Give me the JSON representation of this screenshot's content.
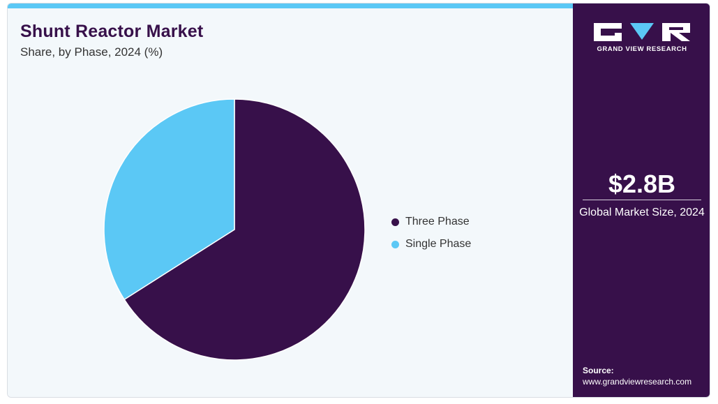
{
  "chart_data": {
    "type": "pie",
    "title": "Shunt Reactor Market",
    "subtitle": "Share, by Phase, 2024 (%)",
    "categories": [
      "Three Phase",
      "Single Phase"
    ],
    "values": [
      66,
      34
    ],
    "colors": [
      "#37104a",
      "#5bc8f5"
    ],
    "legend_position": "right",
    "start_angle": "12 o'clock, clockwise"
  },
  "sidebar": {
    "brand": "GRAND VIEW RESEARCH",
    "market_size": "$2.8B",
    "market_size_label": "Global Market Size, 2024",
    "source_label": "Source:",
    "source_url": "www.grandviewresearch.com"
  },
  "colors": {
    "accent_bar": "#5bc8f5",
    "panel_background": "#f3f8fb",
    "sidebar_background": "#37104a",
    "title_color": "#37104a"
  }
}
